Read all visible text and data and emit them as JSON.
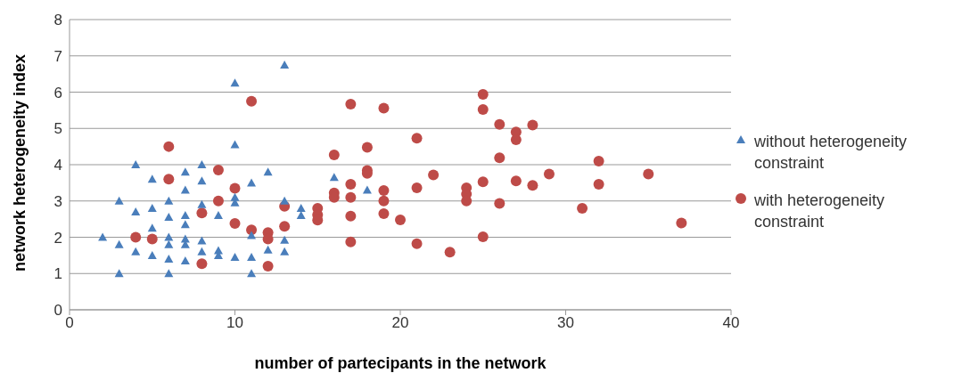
{
  "chart_data": {
    "type": "scatter",
    "xlabel": "number of partecipants in the network",
    "ylabel": "network heterogeneity index",
    "xlim": [
      0,
      40
    ],
    "xticks": [
      0,
      10,
      20,
      30,
      40
    ],
    "ylim": [
      0,
      8
    ],
    "yticks": [
      0,
      1,
      2,
      3,
      4,
      5,
      6,
      7,
      8
    ],
    "grid": "y",
    "legend": "right",
    "series": [
      {
        "name": "without heterogeneity constraint",
        "color": "#4a7ebb",
        "marker": "triangle",
        "x": [
          2,
          3,
          3,
          3,
          4,
          4,
          4,
          5,
          5,
          5,
          5,
          6,
          6,
          6,
          6,
          6,
          6,
          7,
          7,
          7,
          7,
          7,
          7,
          7,
          8,
          8,
          8,
          8,
          8,
          9,
          9,
          9,
          10,
          10,
          10,
          10,
          10,
          11,
          11,
          11,
          11,
          12,
          12,
          13,
          13,
          13,
          13,
          14,
          14,
          16,
          18
        ],
        "values": [
          2.0,
          3.0,
          1.8,
          1.0,
          4.0,
          2.7,
          1.6,
          3.6,
          2.8,
          2.25,
          1.5,
          3.0,
          2.55,
          2.0,
          1.8,
          1.4,
          1.0,
          3.8,
          3.3,
          2.6,
          2.35,
          1.95,
          1.8,
          1.35,
          4.0,
          3.55,
          2.9,
          1.9,
          1.6,
          2.6,
          1.63,
          1.5,
          6.25,
          4.55,
          3.1,
          2.95,
          1.45,
          3.5,
          2.05,
          1.45,
          1.0,
          3.8,
          1.65,
          6.75,
          3.0,
          1.92,
          1.6,
          2.8,
          2.6,
          3.65,
          3.3
        ]
      },
      {
        "name": "with heterogeneity constraint",
        "color": "#be4b48",
        "marker": "circle",
        "x": [
          4,
          5,
          6,
          6,
          8,
          8,
          9,
          9,
          10,
          10,
          11,
          11,
          12,
          12,
          12,
          13,
          13,
          15,
          15,
          15,
          16,
          16,
          16,
          17,
          17,
          17,
          17,
          17,
          18,
          18,
          18,
          19,
          19,
          19,
          19,
          20,
          21,
          21,
          21,
          22,
          23,
          24,
          24,
          24,
          25,
          25,
          25,
          25,
          26,
          26,
          26,
          27,
          27,
          27,
          28,
          28,
          29,
          31,
          32,
          32,
          35,
          37
        ],
        "values": [
          2.0,
          1.95,
          4.5,
          3.6,
          2.67,
          1.27,
          3.85,
          3.0,
          3.35,
          2.38,
          5.75,
          2.2,
          2.13,
          1.95,
          1.2,
          2.85,
          2.3,
          2.8,
          2.62,
          2.47,
          4.27,
          3.22,
          3.1,
          5.67,
          3.46,
          3.1,
          2.58,
          1.87,
          4.48,
          3.84,
          3.76,
          5.56,
          3.29,
          3.0,
          2.65,
          2.48,
          4.73,
          3.36,
          1.82,
          3.72,
          1.59,
          3.36,
          3.19,
          3.0,
          5.94,
          5.52,
          3.53,
          2.01,
          5.11,
          4.19,
          2.93,
          4.9,
          4.69,
          3.55,
          5.09,
          3.43,
          3.74,
          2.8,
          4.1,
          3.46,
          3.74,
          2.39
        ]
      }
    ]
  }
}
